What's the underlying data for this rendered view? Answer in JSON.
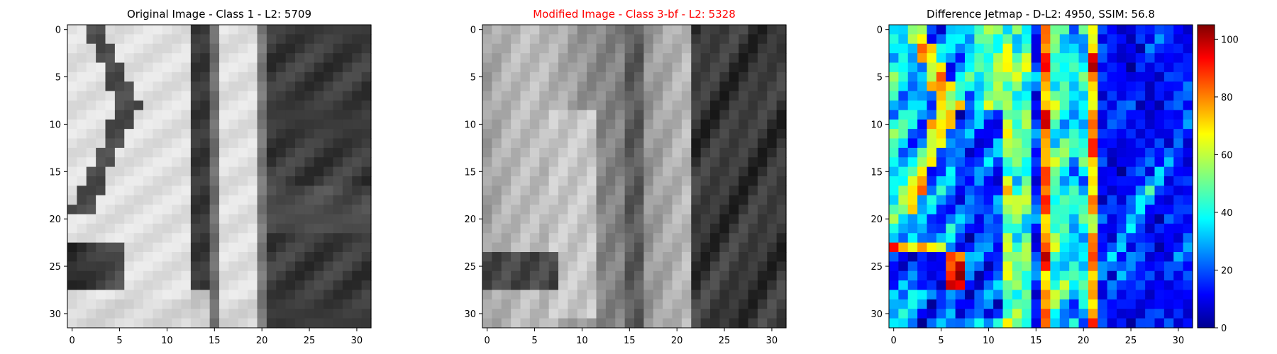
{
  "chart_data": [
    {
      "type": "heatmap",
      "colormap": "gray",
      "title": "Original Image - Class 1 - L2: 5709",
      "title_color": "#000000",
      "x_ticks": [
        "0",
        "5",
        "10",
        "15",
        "20",
        "25",
        "30"
      ],
      "y_ticks": [
        "0",
        "5",
        "10",
        "15",
        "20",
        "25",
        "30"
      ],
      "xlim": [
        0,
        31
      ],
      "ylim": [
        31,
        0
      ],
      "grid": false
    },
    {
      "type": "heatmap",
      "colormap": "gray",
      "title": "Modified Image - Class 3-bf - L2: 5328",
      "title_color": "#ff0000",
      "x_ticks": [
        "0",
        "5",
        "10",
        "15",
        "20",
        "25",
        "30"
      ],
      "y_ticks": [
        "0",
        "5",
        "10",
        "15",
        "20",
        "25",
        "30"
      ],
      "xlim": [
        0,
        31
      ],
      "ylim": [
        31,
        0
      ],
      "grid": false
    },
    {
      "type": "heatmap",
      "colormap": "jet",
      "title": "Difference Jetmap - D-L2: 4950, SSIM: 56.8",
      "title_color": "#000000",
      "x_ticks": [
        "0",
        "5",
        "10",
        "15",
        "20",
        "25",
        "30"
      ],
      "y_ticks": [
        "0",
        "5",
        "10",
        "15",
        "20",
        "25",
        "30"
      ],
      "xlim": [
        0,
        31
      ],
      "ylim": [
        31,
        0
      ],
      "grid": false,
      "colorbar": {
        "range": [
          0,
          105
        ],
        "ticks": [
          "0",
          "20",
          "40",
          "60",
          "80",
          "100"
        ]
      }
    }
  ]
}
